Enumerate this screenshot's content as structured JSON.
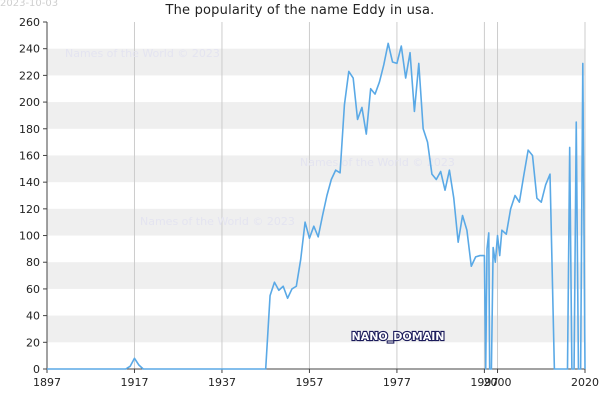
{
  "date_stamp": "2023-10-03",
  "watermarks": [
    "Names of the World © 2023",
    "Names of the World © 2023",
    "Names of the World © 2023"
  ],
  "label_tag": "NANO_DOMAIN",
  "colors": {
    "line": "#5aa9e6",
    "band": "#efefef",
    "grid": "#cccccc",
    "axis": "#444444",
    "text": "#222222",
    "watermark": "#e4e4f0",
    "tag_fill": "#ffffff",
    "tag_stroke": "#1a1a5a"
  },
  "chart_data": {
    "type": "line",
    "title": "The popularity of the name Eddy in usa.",
    "xlabel": "",
    "ylabel": "",
    "xlim": [
      1897,
      2020
    ],
    "ylim": [
      0,
      260
    ],
    "x_ticks": [
      1897,
      1917,
      1937,
      1957,
      1977,
      1997,
      2000,
      2020
    ],
    "y_ticks": [
      0,
      20,
      40,
      60,
      80,
      100,
      120,
      140,
      160,
      180,
      200,
      220,
      240,
      260
    ],
    "grid": true,
    "legend": "none",
    "series": [
      {
        "name": "",
        "points": [
          [
            1897,
            0
          ],
          [
            1900,
            0
          ],
          [
            1905,
            0
          ],
          [
            1910,
            0
          ],
          [
            1915,
            0
          ],
          [
            1916,
            2
          ],
          [
            1917,
            8
          ],
          [
            1918,
            3
          ],
          [
            1919,
            0
          ],
          [
            1925,
            0
          ],
          [
            1930,
            0
          ],
          [
            1935,
            0
          ],
          [
            1940,
            0
          ],
          [
            1945,
            0
          ],
          [
            1947,
            0
          ],
          [
            1948,
            55
          ],
          [
            1949,
            65
          ],
          [
            1950,
            59
          ],
          [
            1951,
            62
          ],
          [
            1952,
            53
          ],
          [
            1953,
            60
          ],
          [
            1954,
            62
          ],
          [
            1955,
            82
          ],
          [
            1956,
            110
          ],
          [
            1957,
            98
          ],
          [
            1958,
            107
          ],
          [
            1959,
            99
          ],
          [
            1960,
            115
          ],
          [
            1961,
            130
          ],
          [
            1962,
            142
          ],
          [
            1963,
            149
          ],
          [
            1964,
            147
          ],
          [
            1965,
            198
          ],
          [
            1966,
            223
          ],
          [
            1967,
            218
          ],
          [
            1968,
            187
          ],
          [
            1969,
            196
          ],
          [
            1970,
            176
          ],
          [
            1971,
            210
          ],
          [
            1972,
            206
          ],
          [
            1973,
            215
          ],
          [
            1974,
            228
          ],
          [
            1975,
            244
          ],
          [
            1976,
            230
          ],
          [
            1977,
            229
          ],
          [
            1978,
            242
          ],
          [
            1979,
            218
          ],
          [
            1980,
            237
          ],
          [
            1981,
            193
          ],
          [
            1982,
            229
          ],
          [
            1983,
            180
          ],
          [
            1984,
            170
          ],
          [
            1985,
            146
          ],
          [
            1986,
            142
          ],
          [
            1987,
            148
          ],
          [
            1988,
            134
          ],
          [
            1989,
            149
          ],
          [
            1990,
            128
          ],
          [
            1991,
            95
          ],
          [
            1992,
            115
          ],
          [
            1993,
            104
          ],
          [
            1994,
            77
          ],
          [
            1995,
            84
          ],
          [
            1996,
            85
          ],
          [
            1997,
            85
          ],
          [
            1997.3,
            0
          ],
          [
            1997.6,
            90
          ],
          [
            1998,
            102
          ],
          [
            1998.2,
            0
          ],
          [
            1998.4,
            0
          ],
          [
            1998.6,
            0
          ],
          [
            1999,
            91
          ],
          [
            1999.5,
            80
          ],
          [
            2000,
            100
          ],
          [
            2000.5,
            85
          ],
          [
            2001,
            104
          ],
          [
            2002,
            101
          ],
          [
            2003,
            120
          ],
          [
            2004,
            130
          ],
          [
            2005,
            125
          ],
          [
            2006,
            145
          ],
          [
            2007,
            164
          ],
          [
            2008,
            160
          ],
          [
            2009,
            128
          ],
          [
            2010,
            125
          ],
          [
            2011,
            138
          ],
          [
            2012,
            146
          ],
          [
            2013,
            0
          ],
          [
            2014,
            0
          ],
          [
            2015,
            0
          ],
          [
            2016,
            0
          ],
          [
            2016.5,
            166
          ],
          [
            2017,
            0
          ],
          [
            2017.5,
            0
          ],
          [
            2018,
            185
          ],
          [
            2018.5,
            0
          ],
          [
            2019,
            0
          ],
          [
            2019.5,
            229
          ],
          [
            2020,
            0
          ]
        ]
      }
    ]
  }
}
